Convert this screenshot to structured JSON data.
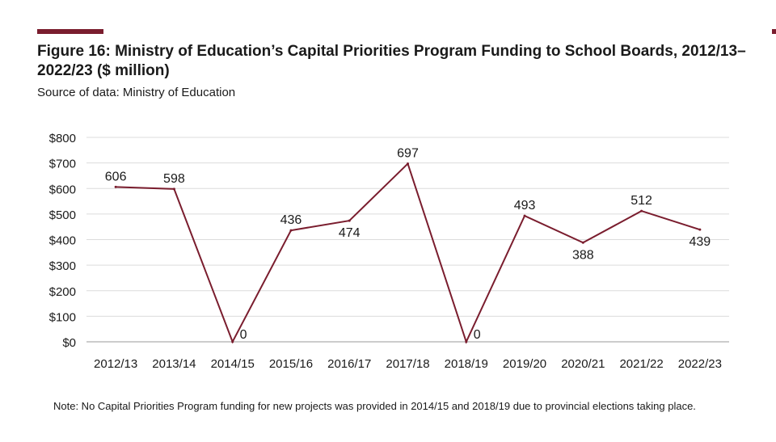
{
  "figure": {
    "title": "Figure 16:  Ministry of Education’s Capital Priorities Program Funding to School Boards, 2012/13–2022/23 ($ million)",
    "source": "Source of data: Ministry of Education",
    "note": "Note: No Capital Priorities Program funding for new projects was provided in 2014/15 and 2018/19 due to provincial elections taking place.",
    "accent_color": "#7a1d2e"
  },
  "chart_data": {
    "type": "line",
    "title": "Figure 16:  Ministry of Education’s Capital Priorities Program Funding to School Boards, 2012/13–2022/23 ($ million)",
    "xlabel": "",
    "ylabel": "",
    "categories": [
      "2012/13",
      "2013/14",
      "2014/15",
      "2015/16",
      "2016/17",
      "2017/18",
      "2018/19",
      "2019/20",
      "2020/21",
      "2021/22",
      "2022/23"
    ],
    "series": [
      {
        "values": [
          606,
          598,
          0,
          436,
          474,
          697,
          0,
          493,
          388,
          512,
          439
        ],
        "color": "#7a1d2e"
      }
    ],
    "data_labels": [
      "606",
      "598",
      "0",
      "436",
      "474",
      "697",
      "0",
      "493",
      "388",
      "512",
      "439"
    ],
    "ylim": [
      0,
      800
    ],
    "yticks": [
      0,
      100,
      200,
      300,
      400,
      500,
      600,
      700,
      800
    ],
    "ytick_labels": [
      "$0",
      "$100",
      "$200",
      "$300",
      "$400",
      "$500",
      "$600",
      "$700",
      "$800"
    ],
    "grid": true,
    "legend": "none"
  }
}
